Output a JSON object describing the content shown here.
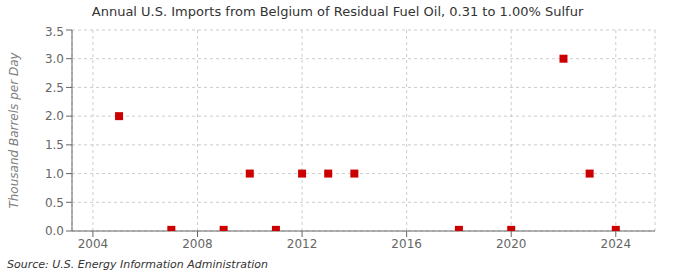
{
  "chart_data": {
    "type": "scatter",
    "title": "Annual U.S. Imports from Belgium of Residual Fuel Oil, 0.31 to 1.00% Sulfur",
    "ylabel": "Thousand Barrels per Day",
    "annotation": "Source: U.S. Energy Information Administration",
    "x": [
      2005,
      2007,
      2009,
      2010,
      2011,
      2012,
      2013,
      2014,
      2018,
      2020,
      2022,
      2023,
      2024
    ],
    "values": [
      2.0,
      0.02,
      0.02,
      1.0,
      0.02,
      1.0,
      1.0,
      1.0,
      0.02,
      0.02,
      3.0,
      1.0,
      0.02
    ],
    "color": "#cc0000",
    "marker": "square",
    "xlim": [
      2003.2,
      2025.5
    ],
    "ylim": [
      0.0,
      3.5
    ],
    "xticks": [
      2004,
      2008,
      2012,
      2016,
      2020,
      2024
    ],
    "yticks": [
      {
        "value": 0.0,
        "label": "0.0"
      },
      {
        "value": 0.5,
        "label": "0.5"
      },
      {
        "value": 1.0,
        "label": "1.0"
      },
      {
        "value": 1.5,
        "label": "1.5"
      },
      {
        "value": 2.0,
        "label": "2.0"
      },
      {
        "value": 2.5,
        "label": "2.5"
      },
      {
        "value": 3.0,
        "label": "3.0"
      },
      {
        "value": 3.5,
        "label": "3.5"
      }
    ],
    "grid": true
  }
}
